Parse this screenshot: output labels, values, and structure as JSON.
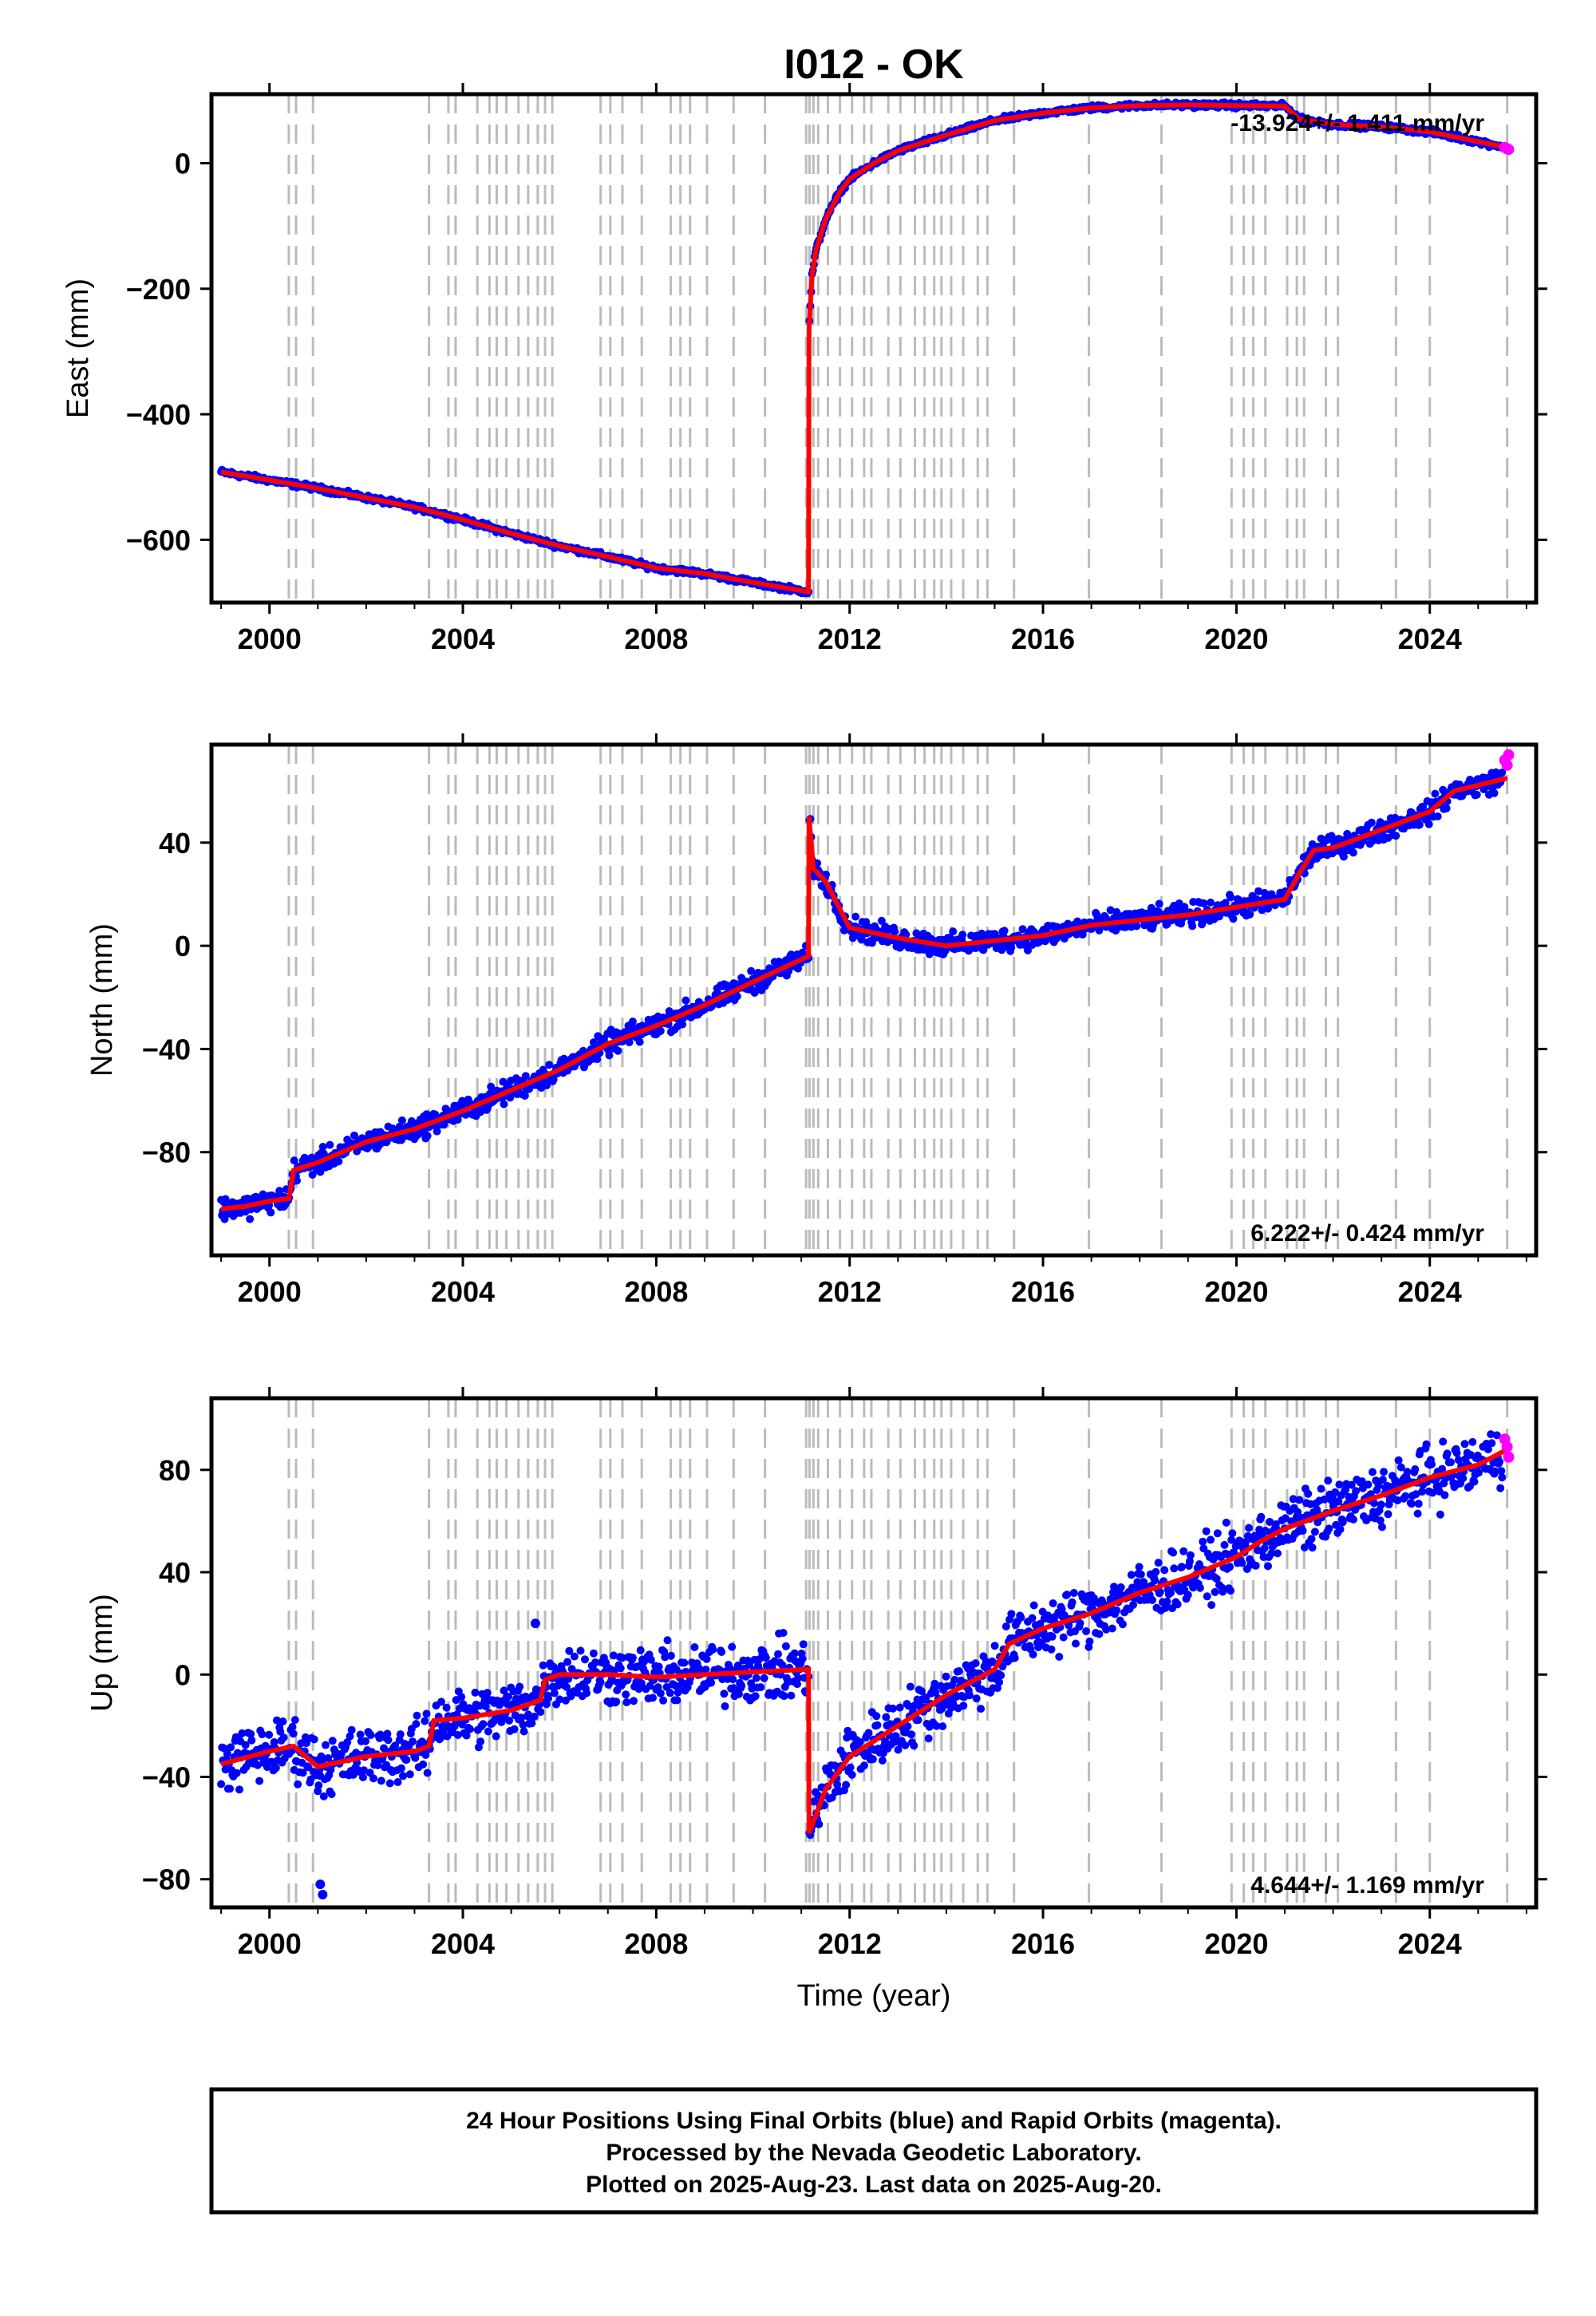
{
  "title": "I012 - OK",
  "footer": {
    "line1": "24 Hour Positions Using Final Orbits (blue) and Rapid Orbits (magenta).",
    "line2": "Processed by the Nevada Geodetic Laboratory.",
    "line3": "Plotted on 2025-Aug-23. Last data on 2025-Aug-20."
  },
  "colors": {
    "final_orbits": "#0000ff",
    "rapid_orbits": "#ff00ff",
    "model": "#ff0000",
    "event_lines": "#bbbbbb"
  },
  "chart_data": [
    {
      "type": "scatter",
      "panel": "east",
      "ylabel": "East (mm)",
      "xlabel": "",
      "xlim": [
        1998.8,
        2026.2
      ],
      "ylim": [
        -700,
        110
      ],
      "xticks": [
        2000,
        2004,
        2008,
        2012,
        2016,
        2020,
        2024
      ],
      "yticks": [
        -600,
        -400,
        -200,
        0
      ],
      "ytick_labels": [
        "−600",
        "−400",
        "−200",
        "0"
      ],
      "rate_label": "-13.924+/- 1.411 mm/yr",
      "rate_position": "top-right",
      "scatter": 3,
      "model_knots": [
        [
          1999.0,
          -492
        ],
        [
          2000.0,
          -505
        ],
        [
          2001.0,
          -518
        ],
        [
          2002.0,
          -533
        ],
        [
          2003.0,
          -548
        ],
        [
          2004.0,
          -568
        ],
        [
          2005.0,
          -590
        ],
        [
          2006.0,
          -610
        ],
        [
          2007.0,
          -627
        ],
        [
          2008.0,
          -645
        ],
        [
          2009.0,
          -654
        ],
        [
          2010.0,
          -668
        ],
        [
          2011.15,
          -683
        ],
        [
          2011.16,
          -265
        ],
        [
          2011.22,
          -180
        ],
        [
          2011.3,
          -140
        ],
        [
          2011.5,
          -90
        ],
        [
          2011.8,
          -45
        ],
        [
          2012.0,
          -25
        ],
        [
          2012.5,
          0
        ],
        [
          2013.0,
          20
        ],
        [
          2014.0,
          45
        ],
        [
          2015.0,
          68
        ],
        [
          2016.0,
          80
        ],
        [
          2017.0,
          88
        ],
        [
          2018.0,
          92
        ],
        [
          2019.0,
          93
        ],
        [
          2020.0,
          92
        ],
        [
          2021.0,
          91
        ],
        [
          2021.3,
          70
        ],
        [
          2022.0,
          62
        ],
        [
          2023.0,
          58
        ],
        [
          2024.0,
          50
        ],
        [
          2025.6,
          25
        ]
      ],
      "rapid_points": [
        [
          2025.55,
          25
        ],
        [
          2025.6,
          23
        ],
        [
          2025.63,
          22
        ]
      ]
    },
    {
      "type": "scatter",
      "panel": "north",
      "ylabel": "North (mm)",
      "xlabel": "",
      "xlim": [
        1998.8,
        2026.2
      ],
      "ylim": [
        -120,
        78
      ],
      "xticks": [
        2000,
        2004,
        2008,
        2012,
        2016,
        2020,
        2024
      ],
      "yticks": [
        -80,
        -40,
        0,
        40
      ],
      "ytick_labels": [
        "−80",
        "−40",
        "0",
        "40"
      ],
      "rate_label": "6.222+/- 0.424 mm/yr",
      "rate_position": "bottom-right",
      "scatter": 3,
      "model_knots": [
        [
          1999.0,
          -102
        ],
        [
          1999.5,
          -101
        ],
        [
          2000.0,
          -99
        ],
        [
          2000.4,
          -98
        ],
        [
          2000.5,
          -87
        ],
        [
          2001.0,
          -84
        ],
        [
          2002.0,
          -76
        ],
        [
          2003.0,
          -71
        ],
        [
          2004.0,
          -64
        ],
        [
          2005.0,
          -56
        ],
        [
          2006.0,
          -48
        ],
        [
          2007.0,
          -38
        ],
        [
          2008.0,
          -31
        ],
        [
          2009.0,
          -23
        ],
        [
          2010.0,
          -14
        ],
        [
          2011.15,
          -4
        ],
        [
          2011.16,
          50
        ],
        [
          2011.25,
          30
        ],
        [
          2011.5,
          25
        ],
        [
          2012.0,
          7
        ],
        [
          2013.0,
          3
        ],
        [
          2014.0,
          0
        ],
        [
          2015.0,
          2
        ],
        [
          2016.0,
          4
        ],
        [
          2017.0,
          8
        ],
        [
          2018.0,
          10
        ],
        [
          2019.0,
          12
        ],
        [
          2020.0,
          15
        ],
        [
          2021.0,
          18
        ],
        [
          2021.3,
          28
        ],
        [
          2021.6,
          37
        ],
        [
          2022.0,
          38
        ],
        [
          2023.0,
          45
        ],
        [
          2024.0,
          52
        ],
        [
          2024.5,
          60
        ],
        [
          2025.6,
          65
        ]
      ],
      "rapid_points": [
        [
          2025.55,
          72
        ],
        [
          2025.6,
          70
        ],
        [
          2025.63,
          74
        ]
      ]
    },
    {
      "type": "scatter",
      "panel": "up",
      "ylabel": "Up (mm)",
      "xlabel": "Time (year)",
      "xlim": [
        1998.8,
        2026.2
      ],
      "ylim": [
        -91,
        108
      ],
      "xticks": [
        2000,
        2004,
        2008,
        2012,
        2016,
        2020,
        2024
      ],
      "yticks": [
        -80,
        -40,
        0,
        40,
        80
      ],
      "ytick_labels": [
        "−80",
        "−40",
        "0",
        "40",
        "80"
      ],
      "rate_label": "4.644+/- 1.169 mm/yr",
      "rate_position": "bottom-right",
      "scatter": 8,
      "model_knots": [
        [
          1999.0,
          -35
        ],
        [
          2000.0,
          -30
        ],
        [
          2000.5,
          -28
        ],
        [
          2001.0,
          -36
        ],
        [
          2002.0,
          -32
        ],
        [
          2003.0,
          -30
        ],
        [
          2003.3,
          -28
        ],
        [
          2003.4,
          -18
        ],
        [
          2004.0,
          -17
        ],
        [
          2005.0,
          -14
        ],
        [
          2005.6,
          -10
        ],
        [
          2005.7,
          -2
        ],
        [
          2006.0,
          0
        ],
        [
          2007.0,
          0
        ],
        [
          2008.0,
          -1
        ],
        [
          2009.0,
          0
        ],
        [
          2010.0,
          1
        ],
        [
          2011.15,
          2
        ],
        [
          2011.16,
          -62
        ],
        [
          2011.5,
          -45
        ],
        [
          2012.0,
          -32
        ],
        [
          2013.0,
          -20
        ],
        [
          2014.0,
          -8
        ],
        [
          2015.0,
          2
        ],
        [
          2015.3,
          12
        ],
        [
          2016.0,
          18
        ],
        [
          2017.0,
          24
        ],
        [
          2018.0,
          32
        ],
        [
          2019.0,
          38
        ],
        [
          2020.0,
          46
        ],
        [
          2020.5,
          52
        ],
        [
          2021.0,
          57
        ],
        [
          2022.0,
          64
        ],
        [
          2023.0,
          70
        ],
        [
          2024.0,
          77
        ],
        [
          2025.0,
          82
        ],
        [
          2025.6,
          88
        ]
      ],
      "rapid_points": [
        [
          2025.55,
          92
        ],
        [
          2025.6,
          89
        ],
        [
          2025.63,
          85
        ]
      ],
      "outliers": [
        [
          2001.05,
          -82
        ],
        [
          2001.1,
          -86
        ],
        [
          2005.5,
          20
        ]
      ]
    }
  ],
  "event_lines": [
    2000.4,
    2000.55,
    2000.9,
    2003.3,
    2003.7,
    2003.85,
    2004.3,
    2004.55,
    2004.7,
    2004.9,
    2005.15,
    2005.35,
    2005.55,
    2005.7,
    2005.85,
    2006.85,
    2007.05,
    2007.3,
    2007.7,
    2008.3,
    2008.5,
    2008.7,
    2009.05,
    2009.6,
    2010.25,
    2011.1,
    2011.17,
    2011.25,
    2011.35,
    2011.55,
    2011.8,
    2012.05,
    2012.3,
    2012.45,
    2012.8,
    2013.05,
    2013.35,
    2013.55,
    2013.75,
    2013.9,
    2014.1,
    2014.35,
    2014.65,
    2014.85,
    2015.4,
    2016.95,
    2018.45,
    2019.9,
    2020.15,
    2020.35,
    2020.6,
    2021.05,
    2021.25,
    2021.4,
    2021.85,
    2022.1,
    2023.3,
    2024.0,
    2025.6
  ]
}
